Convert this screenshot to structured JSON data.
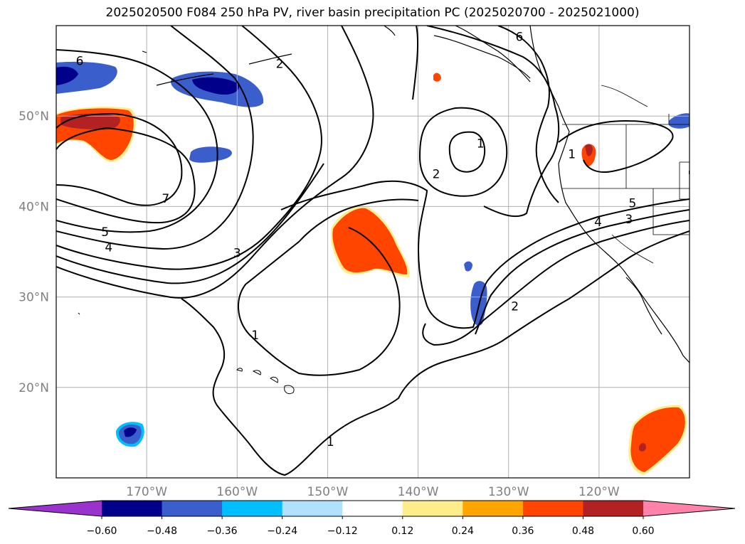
{
  "title": "2025020500 F084 250 hPa PV, river basin precipitation PC (2025020700 - 2025021000)",
  "lat_labels": [
    {
      "value": 50,
      "text": "50°N"
    },
    {
      "value": 40,
      "text": "40°N"
    },
    {
      "value": 30,
      "text": "30°N"
    },
    {
      "value": 20,
      "text": "20°N"
    }
  ],
  "lon_labels": [
    {
      "value": -170,
      "text": "170°W"
    },
    {
      "value": -160,
      "text": "160°W"
    },
    {
      "value": -150,
      "text": "150°W"
    },
    {
      "value": -140,
      "text": "140°W"
    },
    {
      "value": -130,
      "text": "130°W"
    },
    {
      "value": -120,
      "text": "120°W"
    }
  ],
  "map_extent": {
    "lon_min": -180,
    "lon_max": -110,
    "lat_min": 10,
    "lat_max": 60
  },
  "contour_labels": [
    {
      "text": "6",
      "lon": -177.4,
      "lat": 56.1
    },
    {
      "text": "2",
      "lon": -155.3,
      "lat": 55.8
    },
    {
      "text": "6",
      "lon": -128.8,
      "lat": 58.8
    },
    {
      "text": "1",
      "lon": -133.1,
      "lat": 47.0
    },
    {
      "text": "2",
      "lon": -138.0,
      "lat": 43.6
    },
    {
      "text": "1",
      "lon": -123.0,
      "lat": 45.8
    },
    {
      "text": "7",
      "lon": -167.9,
      "lat": 40.9
    },
    {
      "text": "5",
      "lon": -174.6,
      "lat": 37.2
    },
    {
      "text": "4",
      "lon": -174.2,
      "lat": 35.5
    },
    {
      "text": "3",
      "lon": -160.0,
      "lat": 34.9
    },
    {
      "text": "5",
      "lon": -116.3,
      "lat": 40.4
    },
    {
      "text": "4",
      "lon": -120.1,
      "lat": 38.3
    },
    {
      "text": "3",
      "lon": -116.7,
      "lat": 38.6
    },
    {
      "text": "2",
      "lon": -129.3,
      "lat": 29.0
    },
    {
      "text": "1",
      "lon": -158.0,
      "lat": 25.8
    },
    {
      "text": "1",
      "lon": -149.7,
      "lat": 14.0
    }
  ],
  "colorbar": {
    "ticks": [
      "−0.60",
      "−0.48",
      "−0.36",
      "−0.24",
      "−0.12",
      "0.12",
      "0.24",
      "0.36",
      "0.48",
      "0.60"
    ],
    "colors": [
      "#9a32cd",
      "#00008b",
      "#3a5fcd",
      "#00bfff",
      "#b0e2ff",
      "#ffffff",
      "#ffec8b",
      "#ffa500",
      "#ff4500",
      "#b22222",
      "#ff82ab"
    ]
  }
}
